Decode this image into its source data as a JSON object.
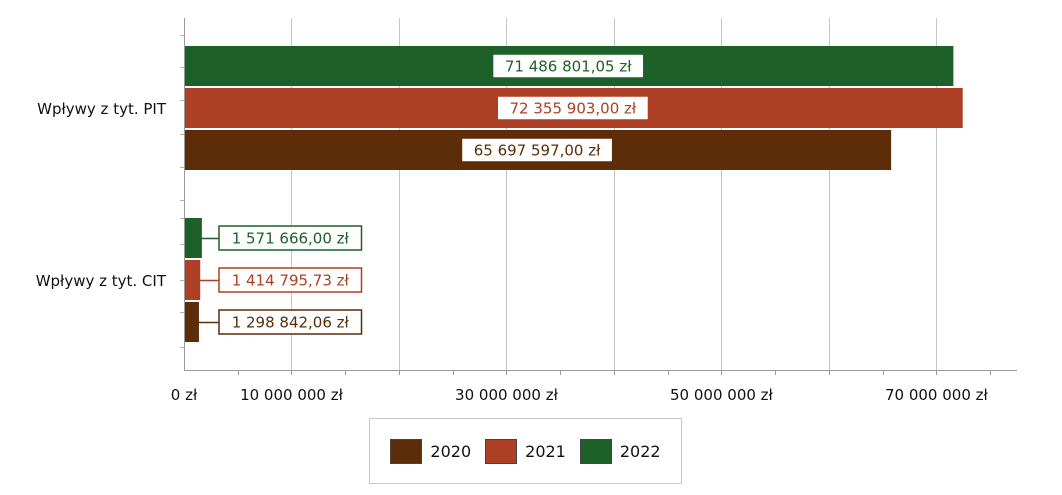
{
  "chart_data": {
    "type": "bar",
    "orientation": "horizontal",
    "categories": [
      "Wpływy z tyt. PIT",
      "Wpływy z tyt. CIT"
    ],
    "series": [
      {
        "name": "2022",
        "color": "#1e6128",
        "values": [
          71486801.05,
          1571666.0
        ],
        "labels": [
          "71 486 801,05 zł",
          "1 571 666,00 zł"
        ]
      },
      {
        "name": "2021",
        "color": "#ad3f24",
        "values": [
          72355903.0,
          1414795.73
        ],
        "labels": [
          "72 355 903,00 zł",
          "1 414 795,73 zł"
        ]
      },
      {
        "name": "2020",
        "color": "#5c2d08",
        "values": [
          65697597.0,
          1298842.06
        ],
        "labels": [
          "65 697 597,00 zł",
          "1 298 842,06 zł"
        ]
      }
    ],
    "xlim": [
      0,
      77500000
    ],
    "xticks": [
      {
        "value": 0,
        "label": "0 zł"
      },
      {
        "value": 10000000,
        "label": "10 000 000 zł"
      },
      {
        "value": 30000000,
        "label": "30 000 000 zł"
      },
      {
        "value": 50000000,
        "label": "50 000 000 zł"
      },
      {
        "value": 70000000,
        "label": "70 000 000 zł"
      }
    ],
    "grid": true,
    "legend_position": "bottom",
    "legend": [
      {
        "name": "2020",
        "color": "#5c2d08"
      },
      {
        "name": "2021",
        "color": "#ad3f24"
      },
      {
        "name": "2022",
        "color": "#1e6128"
      }
    ]
  }
}
